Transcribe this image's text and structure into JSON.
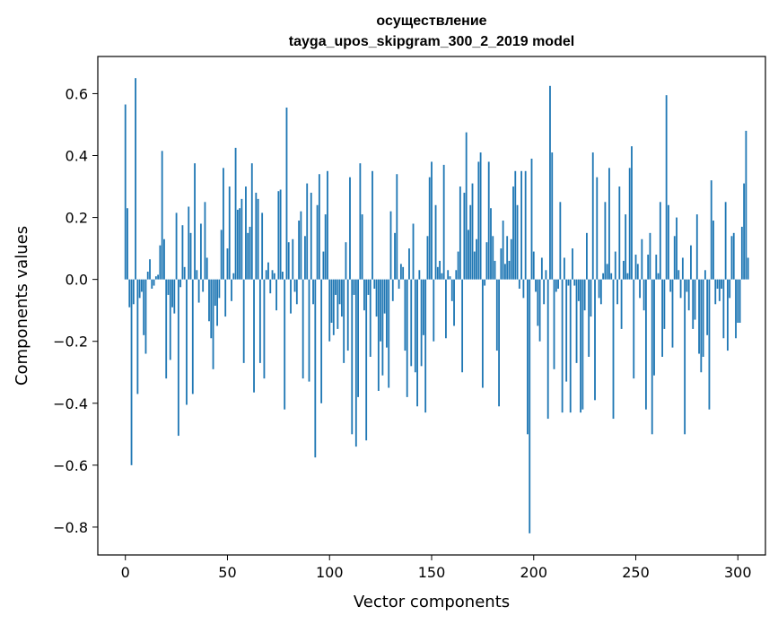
{
  "chart_data": {
    "type": "bar",
    "title": "осуществление",
    "subtitle": "tayga_upos_skipgram_300_2_2019 model",
    "xlabel": "Vector components",
    "ylabel": "Components values",
    "xlim": [
      -13.5,
      313.5
    ],
    "ylim": [
      -0.89,
      0.72
    ],
    "x_ticks": [
      0,
      50,
      100,
      150,
      200,
      250,
      300
    ],
    "y_ticks": [
      -0.8,
      -0.6,
      -0.4,
      -0.2,
      0.0,
      0.2,
      0.4,
      0.6
    ],
    "y_tick_labels": [
      "−0.8",
      "−0.6",
      "−0.4",
      "−0.2",
      "0.0",
      "0.2",
      "0.4",
      "0.6"
    ],
    "bar_color": "#1f77b4",
    "grid": false,
    "series": [
      {
        "values": [
          0.565,
          0.23,
          -0.09,
          -0.6,
          -0.08,
          0.65,
          -0.37,
          -0.06,
          -0.04,
          -0.18,
          -0.24,
          0.025,
          0.065,
          -0.03,
          -0.02,
          0.01,
          0.015,
          0.11,
          0.415,
          0.13,
          -0.32,
          -0.05,
          -0.26,
          -0.09,
          -0.11,
          0.215,
          -0.505,
          -0.025,
          0.175,
          0.04,
          -0.405,
          0.235,
          0.15,
          -0.37,
          0.375,
          0.03,
          -0.075,
          0.18,
          -0.04,
          0.25,
          0.07,
          -0.135,
          -0.19,
          -0.29,
          -0.085,
          -0.15,
          -0.06,
          0.16,
          0.36,
          -0.12,
          0.1,
          0.3,
          -0.07,
          0.02,
          0.425,
          0.225,
          0.23,
          0.26,
          -0.27,
          0.3,
          0.15,
          0.17,
          0.375,
          -0.365,
          0.28,
          0.26,
          -0.27,
          0.215,
          -0.32,
          0.03,
          0.055,
          -0.045,
          0.03,
          0.02,
          -0.1,
          0.285,
          0.29,
          0.025,
          -0.42,
          0.555,
          0.12,
          -0.11,
          0.13,
          -0.04,
          -0.08,
          0.19,
          0.22,
          -0.32,
          0.14,
          0.31,
          -0.33,
          0.28,
          -0.08,
          -0.575,
          0.24,
          0.34,
          -0.4,
          0.09,
          0.21,
          0.35,
          -0.2,
          -0.14,
          -0.18,
          -0.05,
          -0.16,
          -0.08,
          -0.12,
          -0.27,
          0.12,
          -0.23,
          0.33,
          -0.5,
          -0.05,
          -0.54,
          -0.38,
          0.375,
          0.21,
          -0.1,
          -0.52,
          -0.05,
          -0.25,
          0.35,
          -0.03,
          -0.12,
          -0.36,
          -0.2,
          -0.31,
          -0.11,
          -0.22,
          -0.35,
          0.22,
          -0.07,
          0.15,
          0.34,
          -0.03,
          0.05,
          0.04,
          -0.23,
          -0.38,
          0.1,
          -0.28,
          0.18,
          -0.3,
          -0.41,
          0.03,
          -0.28,
          -0.18,
          -0.43,
          0.14,
          0.33,
          0.38,
          -0.2,
          0.24,
          0.04,
          0.06,
          0.02,
          0.37,
          -0.19,
          0.03,
          0.01,
          -0.07,
          -0.15,
          0.03,
          0.09,
          0.3,
          -0.3,
          0.28,
          0.475,
          0.16,
          0.24,
          0.31,
          0.09,
          0.13,
          0.38,
          0.41,
          -0.35,
          -0.02,
          0.12,
          0.38,
          0.23,
          0.14,
          0.06,
          -0.23,
          -0.41,
          0.1,
          0.19,
          0.05,
          0.14,
          0.06,
          0.13,
          0.3,
          0.35,
          0.24,
          -0.03,
          0.35,
          -0.06,
          0.35,
          -0.5,
          -0.82,
          0.39,
          0.09,
          -0.04,
          -0.15,
          -0.2,
          0.07,
          -0.08,
          0.03,
          -0.45,
          0.625,
          0.41,
          -0.29,
          -0.04,
          -0.03,
          0.25,
          -0.43,
          0.07,
          -0.33,
          -0.02,
          -0.43,
          0.1,
          -0.02,
          -0.27,
          -0.07,
          -0.43,
          -0.42,
          -0.1,
          0.15,
          -0.25,
          -0.12,
          0.41,
          -0.39,
          0.33,
          -0.06,
          -0.08,
          0.02,
          0.25,
          0.05,
          0.36,
          0.02,
          -0.45,
          0.09,
          -0.08,
          0.3,
          -0.16,
          0.06,
          0.21,
          0.02,
          0.36,
          0.43,
          -0.32,
          0.08,
          0.05,
          -0.06,
          0.13,
          -0.1,
          -0.42,
          0.08,
          0.15,
          -0.5,
          -0.31,
          0.08,
          0.02,
          0.25,
          -0.25,
          -0.16,
          0.595,
          0.24,
          -0.04,
          -0.22,
          0.14,
          0.2,
          0.03,
          -0.06,
          0.07,
          -0.5,
          -0.04,
          -0.1,
          0.11,
          -0.16,
          -0.13,
          0.21,
          -0.24,
          -0.3,
          -0.25,
          0.03,
          -0.18,
          -0.42,
          0.32,
          0.19,
          -0.08,
          -0.03,
          -0.07,
          -0.03,
          -0.19,
          0.25,
          -0.23,
          -0.06,
          0.14,
          0.15,
          -0.19,
          -0.14,
          -0.14,
          0.17,
          0.31,
          0.48,
          0.07
        ]
      }
    ]
  }
}
